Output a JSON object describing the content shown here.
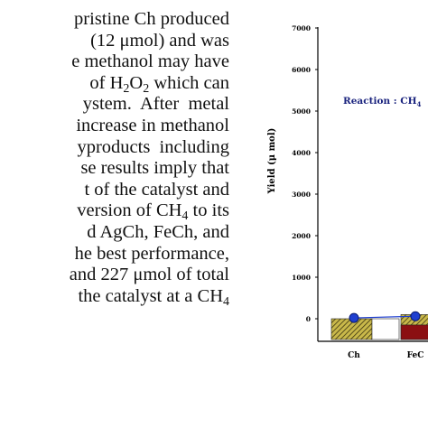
{
  "text_lines": [
    [
      "pristine Ch produced"
    ],
    [
      "(12 μmol) and was"
    ],
    [
      "e methanol may have"
    ],
    [
      "of H",
      "2",
      "O",
      "2",
      " which can"
    ],
    [
      "ystem.  After  metal"
    ],
    [
      "increase in methanol"
    ],
    [
      "yproducts  including"
    ],
    [
      "se results imply that"
    ],
    [
      "t of the catalyst and"
    ],
    [
      "version of CH",
      "4",
      " to its"
    ],
    [
      "d AgCh, FeCh, and"
    ],
    [
      "he best performance,"
    ],
    [
      "and 227 μmol of total"
    ],
    [
      "the catalyst at a CH",
      "4"
    ]
  ],
  "chart_data": {
    "type": "bar",
    "ylabel": "Yield (μ mol)",
    "annotation": [
      "Reaction : CH",
      "4"
    ],
    "categories": [
      "Ch",
      "FeC"
    ],
    "ylim": [
      -500,
      7000
    ],
    "yticks": [
      0,
      1000,
      2000,
      3000,
      4000,
      5000,
      6000,
      7000
    ],
    "series": [
      {
        "color": "#8a7a20",
        "values": [
          0,
          100
        ]
      },
      {
        "color": "#8b0f12",
        "values": [
          null,
          -150
        ]
      }
    ],
    "line": {
      "color": "#1f3fd0",
      "values": [
        20,
        60
      ]
    }
  }
}
